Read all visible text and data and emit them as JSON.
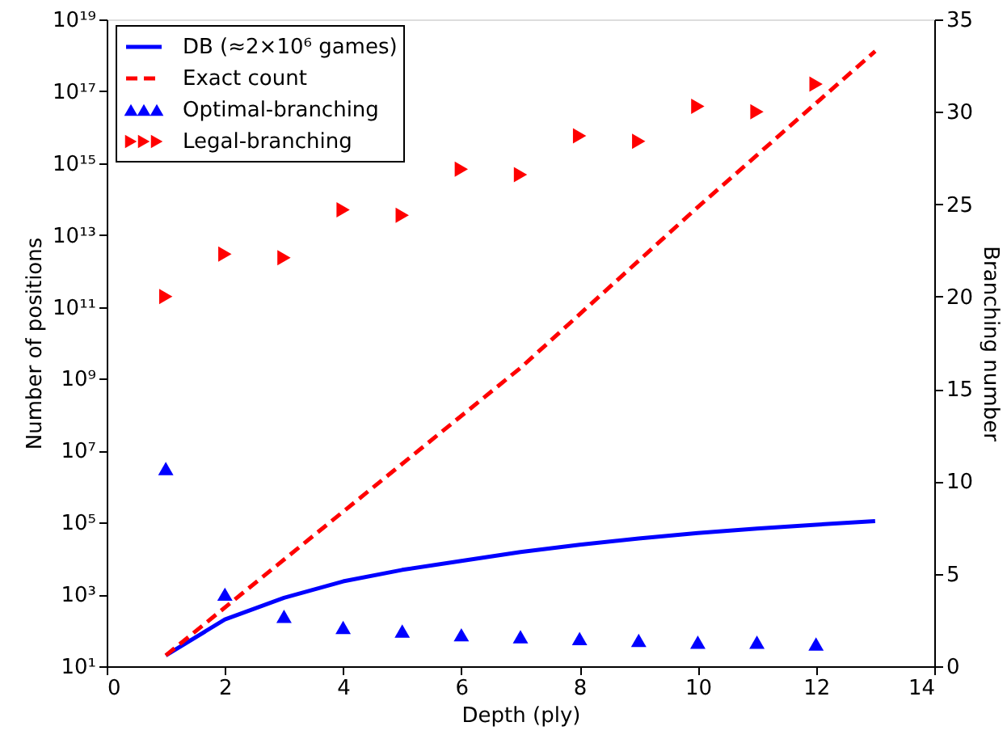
{
  "chart_data": {
    "type": "line",
    "xlabel": "Depth (ply)",
    "ylabel": "Number of positions",
    "y2label": "Branching number",
    "xlim": [
      0,
      14
    ],
    "xticks": [
      0,
      2,
      4,
      6,
      8,
      10,
      12,
      14
    ],
    "ylim": [
      10,
      1e+19
    ],
    "yticks": [
      {
        "value": 10,
        "label": "10¹"
      },
      {
        "value": 1000,
        "label": "10³"
      },
      {
        "value": 100000,
        "label": "10⁵"
      },
      {
        "value": 10000000,
        "label": "10⁷"
      },
      {
        "value": 1000000000,
        "label": "10⁹"
      },
      {
        "value": 100000000000.0,
        "label": "10¹¹"
      },
      {
        "value": 10000000000000.0,
        "label": "10¹³"
      },
      {
        "value": 1000000000000000.0,
        "label": "10¹⁵"
      },
      {
        "value": 1e+17,
        "label": "10¹⁷"
      },
      {
        "value": 1e+19,
        "label": "10¹⁹"
      }
    ],
    "y2lim": [
      0,
      35
    ],
    "y2ticks": [
      0,
      5,
      10,
      15,
      20,
      25,
      30,
      35
    ],
    "log": "y",
    "grid": false,
    "legend": "top left",
    "series": [
      {
        "name": "DB (≈2×10⁶ games)",
        "type": "line",
        "line_style": "solid",
        "color": "#0000ff",
        "x": [
          1,
          2,
          3,
          4,
          5,
          6,
          7,
          8,
          9,
          10,
          11,
          12,
          13
        ],
        "values": [
          20,
          200,
          800,
          2300,
          4800,
          8500,
          15000,
          24000,
          36000,
          51000,
          68000,
          87000,
          110000
        ]
      },
      {
        "name": "Exact count",
        "type": "line",
        "line_style": "dashed",
        "color": "#ff0000",
        "x": [
          1,
          4,
          7,
          10,
          13
        ],
        "values": [
          20,
          200000,
          2000000000,
          60000000000000,
          1.3e+18
        ]
      },
      {
        "name": "Optimal-branching",
        "type": "scatter",
        "marker": "triangle",
        "axis": "y2",
        "color": "#0000ff",
        "x": [
          1,
          2,
          3,
          4,
          5,
          6,
          7,
          8,
          9,
          10,
          11,
          12
        ],
        "values": [
          10.7,
          3.9,
          2.7,
          2.1,
          1.9,
          1.7,
          1.6,
          1.5,
          1.4,
          1.3,
          1.3,
          1.2
        ]
      },
      {
        "name": "Legal-branching",
        "type": "scatter",
        "marker": "triangle-right",
        "axis": "y2",
        "color": "#ff0000",
        "x": [
          1,
          2,
          3,
          4,
          5,
          6,
          7,
          8,
          9,
          10,
          11,
          12
        ],
        "values": [
          20.0,
          22.3,
          22.1,
          24.7,
          24.4,
          26.9,
          26.6,
          28.7,
          28.4,
          30.3,
          30.0,
          31.5
        ]
      }
    ]
  }
}
